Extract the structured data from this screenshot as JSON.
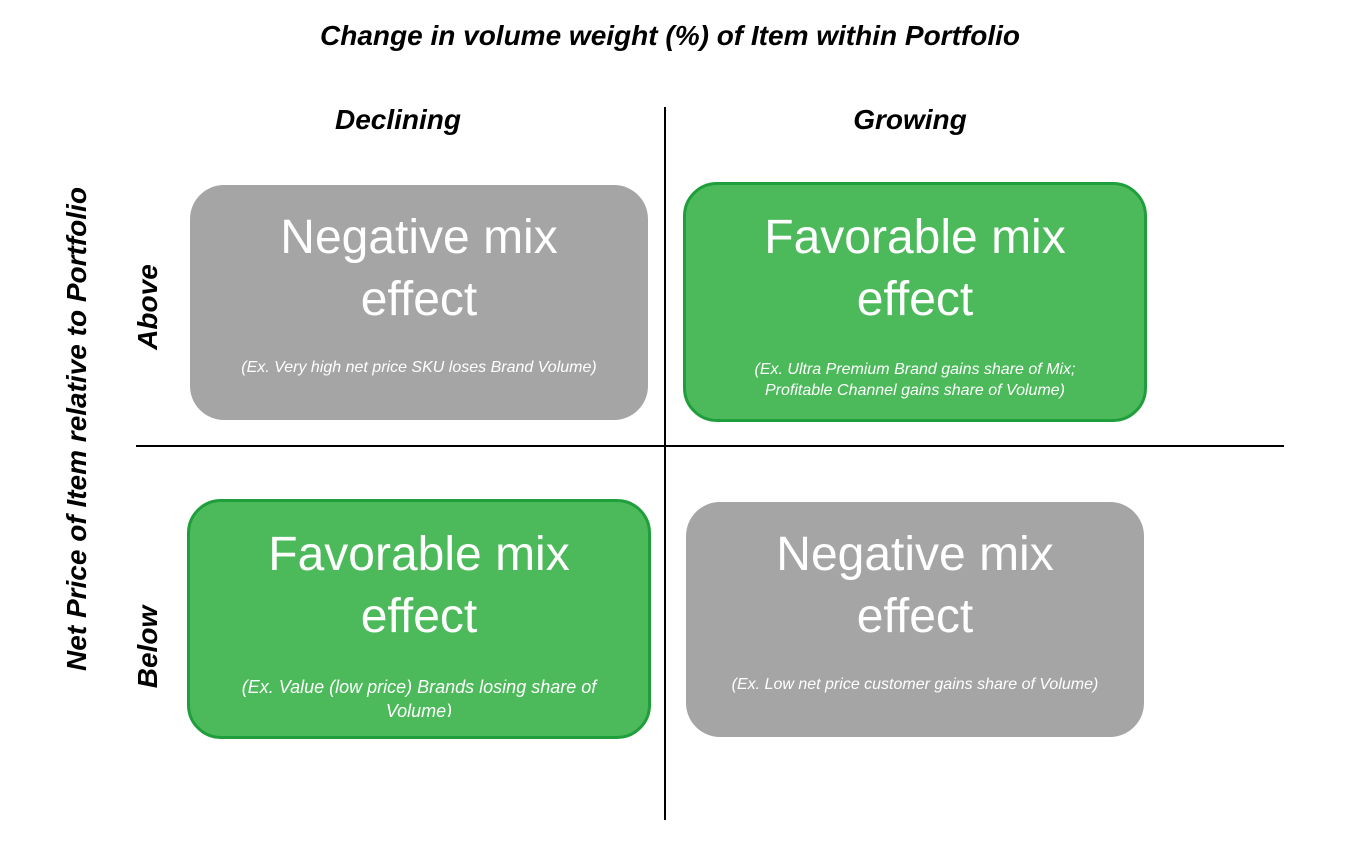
{
  "title": "Change in volume weight (%) of Item within Portfolio",
  "y_axis_title": "Net Price of Item relative to Portfolio",
  "columns": {
    "declining": "Declining",
    "growing": "Growing"
  },
  "rows": {
    "above": "Above",
    "below": "Below"
  },
  "quadrants": {
    "above_declining": {
      "headline_line1": "Negative mix",
      "headline_line2": "effect",
      "example": "(Ex. Very high net price SKU loses Brand Volume)",
      "color": "#a5a5a5"
    },
    "above_growing": {
      "headline_line1": "Favorable mix",
      "headline_line2": "effect",
      "example_line1": "(Ex. Ultra Premium Brand gains share of Mix;",
      "example_line2": "Profitable Channel gains share of Volume)",
      "color": "#4cba5b"
    },
    "below_declining": {
      "headline_line1": "Favorable mix",
      "headline_line2": "effect",
      "example": "(Ex. Value (low price) Brands losing share of Volume)",
      "color": "#4cba5b"
    },
    "below_growing": {
      "headline_line1": "Negative mix",
      "headline_line2": "effect",
      "example": "(Ex. Low net price customer gains share of Volume)",
      "color": "#a5a5a5"
    }
  }
}
